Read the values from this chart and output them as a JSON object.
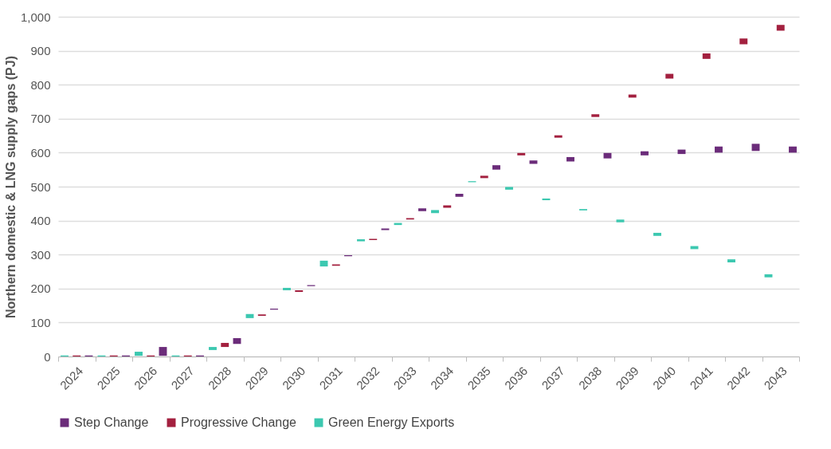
{
  "chart_data": {
    "type": "bar",
    "ylabel": "Northern domestic & LNG supply gaps (PJ)",
    "categories": [
      "2024",
      "2025",
      "2026",
      "2027",
      "2028",
      "2029",
      "2030",
      "2031",
      "2032",
      "2033",
      "2034",
      "2035",
      "2036",
      "2037",
      "2038",
      "2039",
      "2040",
      "2041",
      "2042",
      "2043"
    ],
    "series": [
      {
        "name": "Step Change",
        "color": "#6b2c7a",
        "base": [
          0,
          0,
          2,
          0,
          37,
          138,
          207,
          295,
          372,
          428,
          470,
          550,
          567,
          574,
          583,
          592,
          596,
          600,
          605,
          600
        ],
        "values": [
          3,
          3,
          26,
          3,
          17,
          3,
          3,
          3,
          5,
          8,
          9,
          13,
          10,
          13,
          16,
          12,
          13,
          18,
          21,
          18
        ]
      },
      {
        "name": "Progressive Change",
        "color": "#a3203f",
        "base": [
          0,
          0,
          0,
          0,
          28,
          120,
          190,
          267,
          343,
          403,
          438,
          525,
          592,
          644,
          705,
          762,
          818,
          876,
          919,
          959
        ],
        "values": [
          3,
          3,
          3,
          3,
          12,
          4,
          5,
          4,
          3,
          4,
          7,
          7,
          7,
          7,
          8,
          9,
          14,
          16,
          17,
          17
        ]
      },
      {
        "name": "Green Energy Exports",
        "color": "#3cc8b0",
        "base": [
          0,
          0,
          2,
          0,
          19,
          113,
          195,
          265,
          339,
          387,
          422,
          513,
          491,
          460,
          430,
          395,
          355,
          316,
          277,
          233
        ],
        "values": [
          3,
          3,
          12,
          3,
          9,
          12,
          7,
          17,
          6,
          6,
          9,
          3,
          8,
          5,
          4,
          8,
          9,
          9,
          9,
          9
        ]
      }
    ],
    "ylim": [
      0,
      1000
    ],
    "yticks": [
      0,
      100,
      200,
      300,
      400,
      500,
      600,
      700,
      800,
      900,
      {
        "value": 1000,
        "label": "1,000"
      }
    ],
    "grid": "y",
    "legend": "bottom"
  }
}
